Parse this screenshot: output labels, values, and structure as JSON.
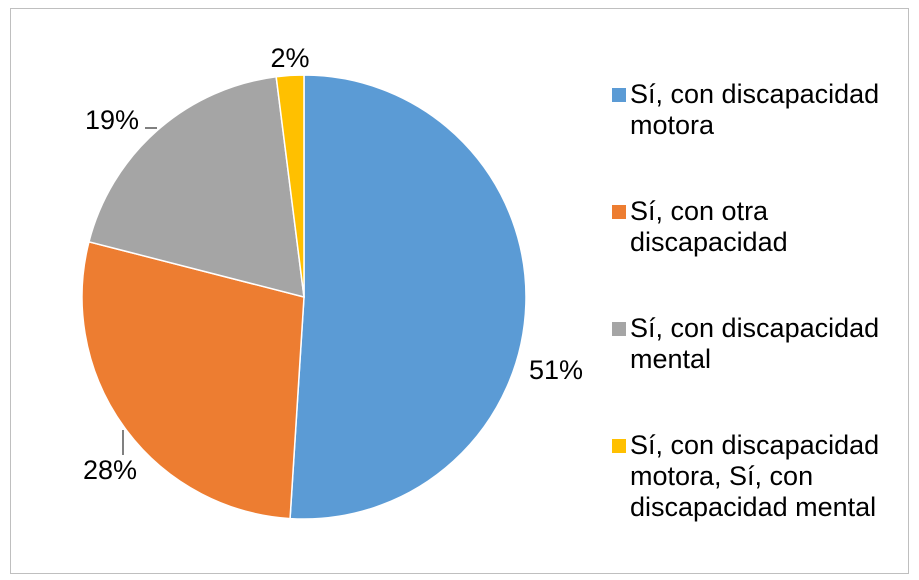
{
  "chart_data": {
    "type": "pie",
    "categories": [
      "Sí, con discapacidad motora",
      "Sí, con otra discapacidad",
      "Sí, con discapacidad mental",
      "Sí, con discapacidad motora, Sí, con discapacidad mental"
    ],
    "values": [
      51,
      28,
      19,
      2
    ],
    "value_labels": [
      "51%",
      "28%",
      "19%",
      "2%"
    ],
    "colors": [
      "#5b9bd5",
      "#ed7d31",
      "#a5a5a5",
      "#ffc000"
    ],
    "legend": "right"
  }
}
